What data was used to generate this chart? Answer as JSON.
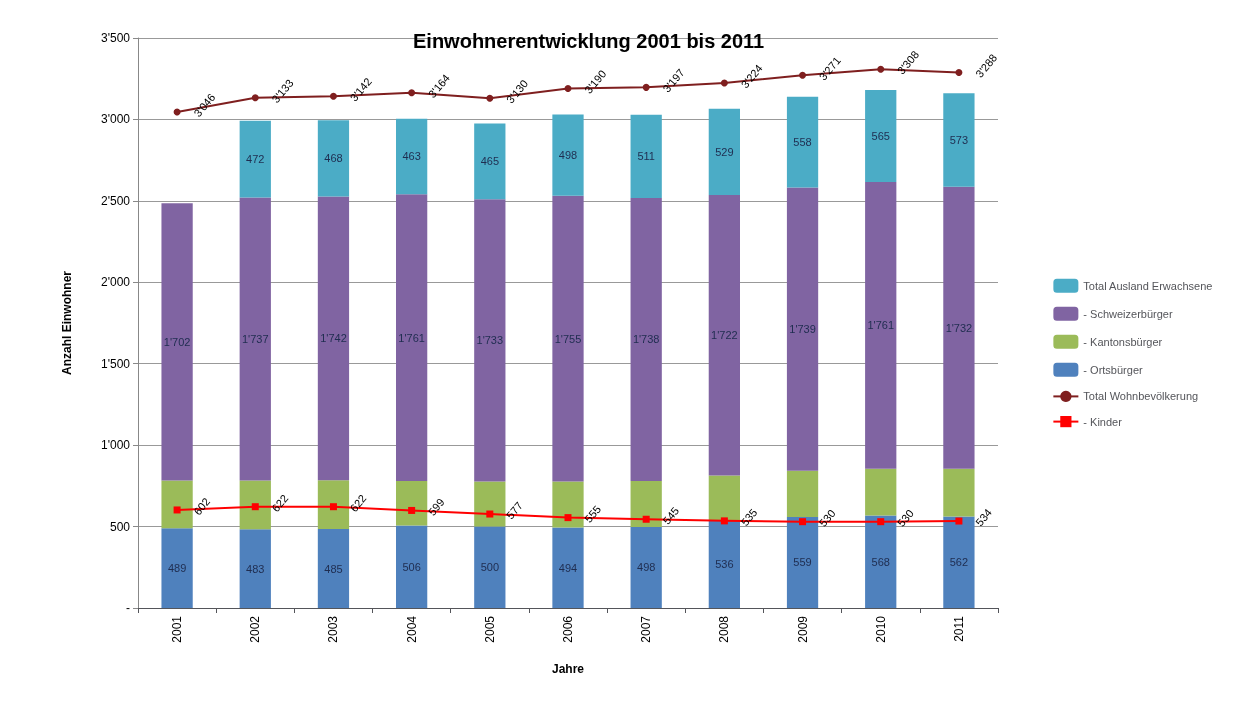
{
  "chart_data": {
    "type": "bar",
    "title": "Einwohnerentwicklung 2001 bis 2011",
    "xlabel": "Jahre",
    "ylabel": "Anzahl Einwohner",
    "categories": [
      "2001",
      "2002",
      "2003",
      "2004",
      "2005",
      "2006",
      "2007",
      "2008",
      "2009",
      "2010",
      "2011"
    ],
    "stacked": true,
    "grid": "y",
    "legend": "right",
    "ylim": [
      0,
      3500
    ],
    "yticks": [
      {
        "value": 0,
        "label": "-"
      },
      {
        "value": 500,
        "label": "500"
      },
      {
        "value": 1000,
        "label": "1'000"
      },
      {
        "value": 1500,
        "label": "1'500"
      },
      {
        "value": 2000,
        "label": "2'000"
      },
      {
        "value": 2500,
        "label": "2'500"
      },
      {
        "value": 3000,
        "label": "3'000"
      },
      {
        "value": 3500,
        "label": "3'500"
      }
    ],
    "series": [
      {
        "name": "- Ortsbürger",
        "color": "#4f81bd",
        "values": [
          489,
          483,
          485,
          506,
          500,
          494,
          498,
          536,
          559,
          568,
          562
        ],
        "value_labels": [
          "489",
          "483",
          "485",
          "506",
          "500",
          "494",
          "498",
          "536",
          "559",
          "568",
          "562"
        ]
      },
      {
        "name": "- Kantonsbürger",
        "color": "#9bbb59",
        "values": [
          294,
          300,
          300,
          274,
          277,
          283,
          282,
          278,
          284,
          287,
          293
        ]
      },
      {
        "name": "- Schweizerbürger",
        "color": "#8064a2",
        "values": [
          1702,
          1737,
          1742,
          1761,
          1733,
          1755,
          1738,
          1722,
          1739,
          1761,
          1732
        ],
        "value_labels": [
          "1'702",
          "1'737",
          "1'742",
          "1'761",
          "1'733",
          "1'755",
          "1'738",
          "1'722",
          "1'739",
          "1'761",
          "1'732"
        ]
      },
      {
        "name": "Total Ausland Erwachsene",
        "color": "#4bacc6",
        "values": [
          null,
          472,
          468,
          463,
          465,
          498,
          511,
          529,
          558,
          565,
          573
        ],
        "value_labels": [
          null,
          "472",
          "468",
          "463",
          "465",
          "498",
          "511",
          "529",
          "558",
          "565",
          "573"
        ]
      },
      {
        "name": "Total Wohnbevölkerung",
        "type": "line",
        "marker": "circle",
        "color": "#7f1f1f",
        "values": [
          3046,
          3133,
          3142,
          3164,
          3130,
          3190,
          3197,
          3224,
          3271,
          3308,
          3288
        ],
        "value_labels": [
          "3'046",
          "3'133",
          "3'142",
          "3'164",
          "3'130",
          "3'190",
          "3'197",
          "3'224",
          "3'271",
          "3'308",
          "3'288"
        ]
      },
      {
        "name": "- Kinder",
        "type": "line",
        "marker": "square",
        "color": "#ff0000",
        "values": [
          602,
          622,
          622,
          599,
          577,
          555,
          545,
          535,
          530,
          530,
          534
        ],
        "value_labels": [
          "602",
          "622",
          "622",
          "599",
          "577",
          "555",
          "545",
          "535",
          "530",
          "530",
          "534"
        ]
      }
    ]
  }
}
